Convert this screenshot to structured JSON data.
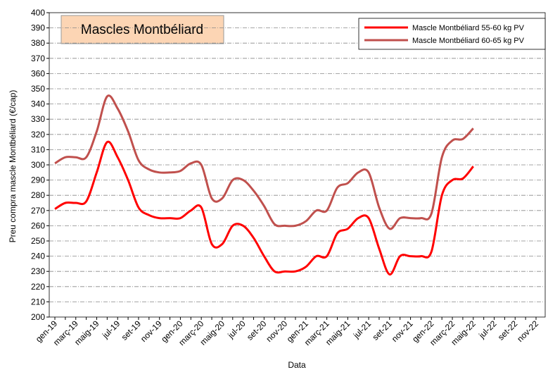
{
  "chart_data": {
    "type": "line",
    "title": "Mascles Montbéliard",
    "xlabel": "Data",
    "ylabel": "Preu compra mascle Montbéliard (€/cap)",
    "categories": [
      "gen-19",
      null,
      "març-19",
      null,
      "maig-19",
      null,
      "jul-19",
      null,
      "set-19",
      null,
      "nov-19",
      null,
      "gen-20",
      null,
      "març-20",
      null,
      "maig-20",
      null,
      "jul-20",
      null,
      "set-20",
      null,
      "nov-20",
      null,
      "gen-21",
      null,
      "març-21",
      null,
      "maig-21",
      null,
      "jul-21",
      null,
      "set-21",
      null,
      "nov-21",
      null,
      "gen-22",
      null,
      "març-22",
      null,
      "maig-22",
      null,
      "jul-22",
      null,
      "set-22",
      null,
      "nov-22"
    ],
    "series": [
      {
        "name": "Mascle Montbéliard 55-60 kg PV",
        "color": "#ff0000",
        "values": [
          271,
          275,
          275,
          276,
          295,
          315,
          305,
          290,
          272,
          267,
          265,
          265,
          265,
          270,
          272,
          248,
          248,
          260,
          260,
          252,
          240,
          230,
          230,
          230,
          233,
          240,
          240,
          255,
          258,
          265,
          265,
          245,
          228,
          240,
          240,
          240,
          243,
          280,
          290,
          291,
          299,
          null,
          null,
          null,
          null,
          null,
          null
        ]
      },
      {
        "name": "Mascle Montbéliard 60-65 kg PV",
        "color": "#c0504d",
        "values": [
          301,
          305,
          305,
          305,
          322,
          345,
          337,
          322,
          303,
          297,
          295,
          295,
          296,
          301,
          300,
          278,
          278,
          290,
          290,
          283,
          273,
          261,
          260,
          260,
          263,
          270,
          270,
          285,
          288,
          295,
          295,
          272,
          258,
          265,
          265,
          265,
          268,
          305,
          316,
          317,
          324,
          null,
          null,
          null,
          null,
          null,
          null
        ]
      }
    ],
    "ylim": [
      200,
      400
    ],
    "yticks": [
      200,
      210,
      220,
      230,
      240,
      250,
      260,
      270,
      280,
      290,
      300,
      310,
      320,
      330,
      340,
      350,
      360,
      370,
      380,
      390,
      400
    ],
    "grid": true,
    "legend": "upper right"
  }
}
